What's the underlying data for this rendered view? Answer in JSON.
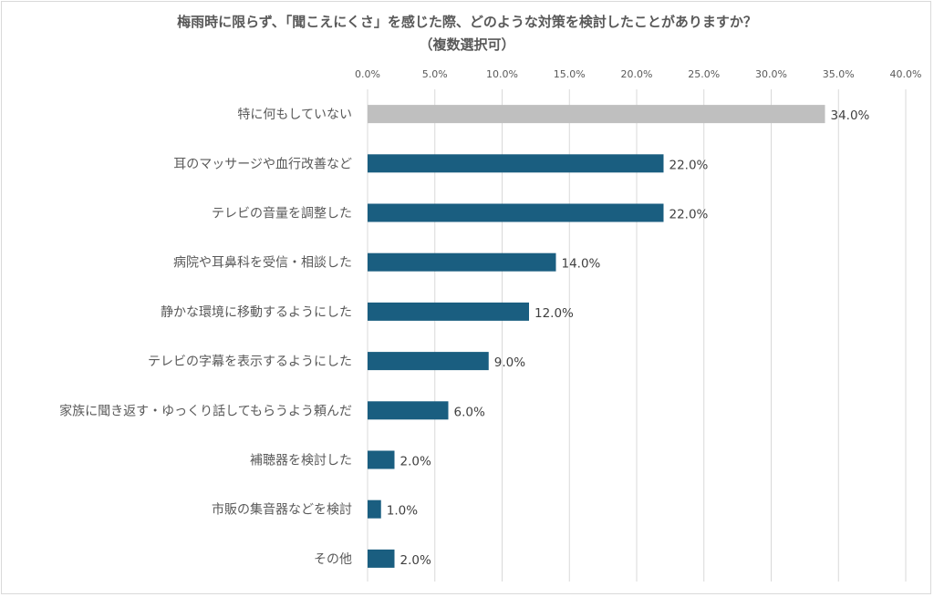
{
  "chart_data": {
    "type": "bar",
    "orientation": "horizontal",
    "title": "梅雨時に限らず、「聞こえにくさ」を感じた際、どのような対策を検討したことがありますか？",
    "subtitle": "（複数選択可）",
    "xlabel": "",
    "ylabel": "",
    "xlim": [
      0,
      40
    ],
    "xticks": [
      0,
      5,
      10,
      15,
      20,
      25,
      30,
      35,
      40
    ],
    "xtick_labels": [
      "0.0%",
      "5.0%",
      "10.0%",
      "15.0%",
      "20.0%",
      "25.0%",
      "30.0%",
      "35.0%",
      "40.0%"
    ],
    "grid": true,
    "categories": [
      "特に何もしていない",
      "耳のマッサージや血行改善など",
      "テレビの音量を調整した",
      "病院や耳鼻科を受信・相談した",
      "静かな環境に移動するようにした",
      "テレビの字幕を表示するようにした",
      "家族に聞き返す・ゆっくり話してもらうよう頼んだ",
      "補聴器を検討した",
      "市販の集音器などを検討",
      "その他"
    ],
    "values": [
      34.0,
      22.0,
      22.0,
      14.0,
      12.0,
      9.0,
      6.0,
      2.0,
      1.0,
      2.0
    ],
    "value_labels": [
      "34.0%",
      "22.0%",
      "22.0%",
      "14.0%",
      "12.0%",
      "9.0%",
      "6.0%",
      "2.0%",
      "1.0%",
      "2.0%"
    ],
    "colors": {
      "highlight": "#bfbfbf",
      "default": "#1a5e80",
      "grid": "#d9d9d9"
    }
  }
}
